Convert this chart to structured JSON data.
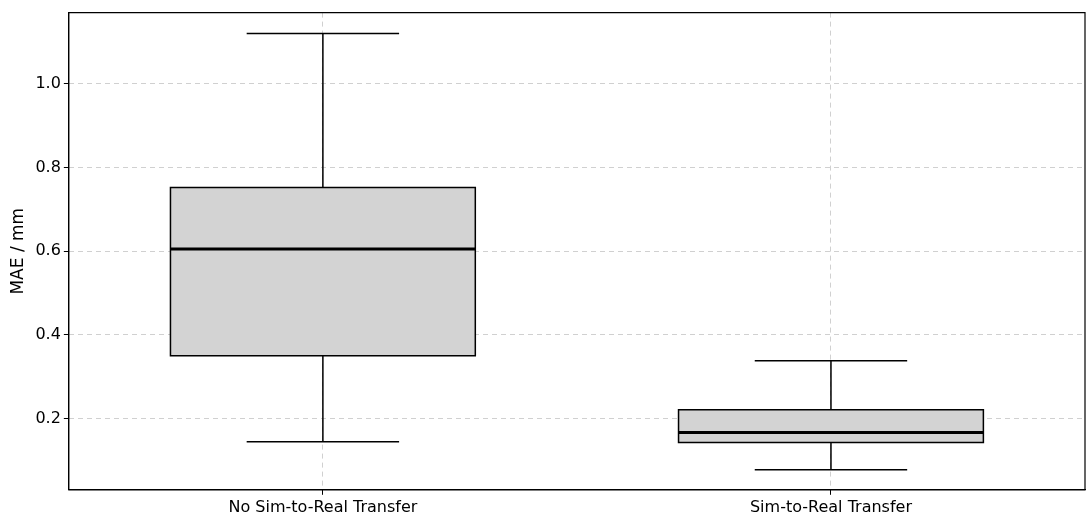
{
  "chart_data": {
    "type": "box",
    "ylabel": "MAE / mm",
    "categories": [
      "No Sim-to-Real Transfer",
      "Sim-to-Real Transfer"
    ],
    "boxes": [
      {
        "low": 0.145,
        "q1": 0.35,
        "median": 0.605,
        "q3": 0.752,
        "high": 1.12
      },
      {
        "low": 0.078,
        "q1": 0.143,
        "median": 0.167,
        "q3": 0.221,
        "high": 0.338
      }
    ],
    "color": "#d3d3d3",
    "ylim": [
      0.03,
      1.17
    ],
    "yticks": [
      {
        "value": 0.2,
        "label": "0.2"
      },
      {
        "value": 0.4,
        "label": "0.4"
      },
      {
        "value": 0.6,
        "label": "0.6"
      },
      {
        "value": 0.8,
        "label": "0.8"
      },
      {
        "value": 1,
        "label": "1.0"
      }
    ],
    "grid": true
  }
}
